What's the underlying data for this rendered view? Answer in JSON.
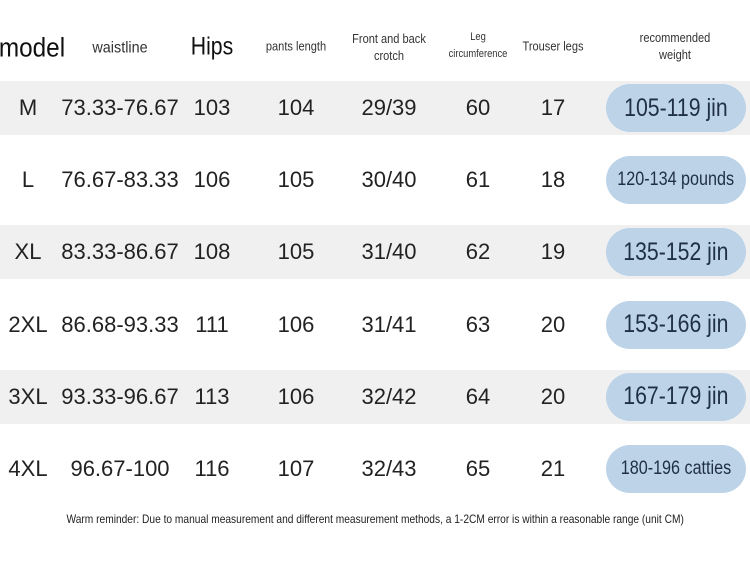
{
  "table": {
    "columns": [
      "model",
      "waistline",
      "Hips",
      "pants length",
      "Front and back crotch",
      "Leg circumference",
      "Trouser legs",
      "recommended weight"
    ],
    "rows": [
      [
        "M",
        "73.33-76.67",
        "103",
        "104",
        "29/39",
        "60",
        "17",
        "105-119 jin"
      ],
      [
        "L",
        "76.67-83.33",
        "106",
        "105",
        "30/40",
        "61",
        "18",
        "120-134 pounds"
      ],
      [
        "XL",
        "83.33-86.67",
        "108",
        "105",
        "31/40",
        "62",
        "19",
        "135-152 jin"
      ],
      [
        "2XL",
        "86.68-93.33",
        "111",
        "106",
        "31/41",
        "63",
        "20",
        "153-166 jin"
      ],
      [
        "3XL",
        "93.33-96.67",
        "113",
        "106",
        "32/42",
        "64",
        "20",
        "167-179 jin"
      ],
      [
        "4XL",
        "96.67-100",
        "116",
        "107",
        "32/43",
        "65",
        "21",
        "180-196 catties"
      ]
    ]
  },
  "footnote": "Warm reminder: Due to manual measurement and different measurement methods, a 1-2CM error is within a reasonable range (unit CM)"
}
